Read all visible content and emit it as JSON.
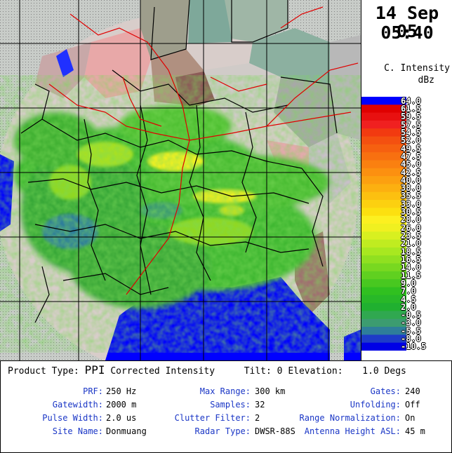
{
  "header": {
    "date": "14 Sep 05",
    "time": "05:40"
  },
  "legend": {
    "title": "C. Intensity",
    "unit": "dBz",
    "ticks": [
      "64.0",
      "61.5",
      "59.5",
      "57.5",
      "54.5",
      "52.0",
      "49.5",
      "47.5",
      "45.0",
      "42.5",
      "40.0",
      "38.0",
      "35.5",
      "33.0",
      "30.5",
      "28.0",
      "26.0",
      "23.5",
      "21.0",
      "18.5",
      "16.5",
      "14.0",
      "11.5",
      "9.0",
      "7.0",
      "4.5",
      "2.0",
      "-0.5",
      "-3.0",
      "-5.5",
      "-8.0",
      "-10.5"
    ],
    "colors": [
      "#0000ff",
      "#e00000",
      "#e81010",
      "#f02020",
      "#f23a10",
      "#f45010",
      "#f66010",
      "#f87010",
      "#fa8010",
      "#fc9010",
      "#fca010",
      "#fcb010",
      "#fcc010",
      "#fcd010",
      "#fce010",
      "#fcf020",
      "#f0f020",
      "#d8f020",
      "#c0ec20",
      "#a8e820",
      "#90e020",
      "#78d820",
      "#60d020",
      "#48c820",
      "#30c020",
      "#28b828",
      "#20b030",
      "#30a850",
      "#3c9c70",
      "#2e7e9a",
      "#1e3cc8",
      "#0000e6"
    ]
  },
  "info": {
    "product_type_label": "Product Type:",
    "product_type_value": "PPI",
    "product_name": "Corrected Intensity",
    "tilt_label": "Tilt:",
    "tilt_value": "0",
    "elevation_label": "Elevation:",
    "elevation_value": "1.0 Degs",
    "prf_label": "PRF:",
    "prf_value": "250 Hz",
    "gatewidth_label": "Gatewidth:",
    "gatewidth_value": "2000 m",
    "pulse_label": "Pulse Width:",
    "pulse_value": "2.0 us",
    "site_label": "Site Name:",
    "site_value": "Donmuang",
    "maxrange_label": "Max Range:",
    "maxrange_value": "300 km",
    "samples_label": "Samples:",
    "samples_value": "32",
    "clutter_label": "Clutter Filter:",
    "clutter_value": "2",
    "radartype_label": "Radar Type:",
    "radartype_value": "DWSR-88S",
    "gates_label": "Gates:",
    "gates_value": "240",
    "unfolding_label": "Unfolding:",
    "unfolding_value": "Off",
    "rangenorm_label": "Range Normalization:",
    "rangenorm_value": "On",
    "antenna_label": "Antenna Height ASL:",
    "antenna_value": "45 m"
  }
}
